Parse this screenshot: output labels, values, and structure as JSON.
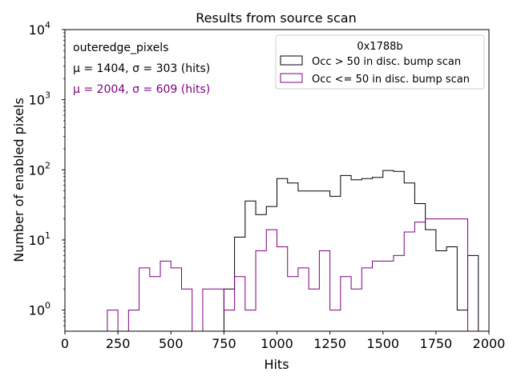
{
  "chart_data": {
    "type": "histogram",
    "title": "Results from source scan",
    "xlabel": "Hits",
    "ylabel": "Number of enabled pixels",
    "xlim": [
      0,
      2000
    ],
    "ylim": [
      0.5,
      10000
    ],
    "yscale": "log",
    "grid": false,
    "x_ticks": [
      "0",
      "250",
      "500",
      "750",
      "1000",
      "1250",
      "1500",
      "1750",
      "2000"
    ],
    "y_ticks": [
      {
        "base": "10",
        "exp": "0"
      },
      {
        "base": "10",
        "exp": "1"
      },
      {
        "base": "10",
        "exp": "2"
      },
      {
        "base": "10",
        "exp": "3"
      },
      {
        "base": "10",
        "exp": "4"
      }
    ],
    "annotations": [
      {
        "text": "outeredge_pixels",
        "color": "#000000"
      },
      {
        "text": "μ = 1404, σ = 303 (hits)",
        "color": "#000000"
      },
      {
        "text": "μ = 2004, σ = 609 (hits)",
        "color": "#800080"
      }
    ],
    "legend": {
      "title": "0x1788b",
      "placement": "top-right"
    },
    "bin_width": 50,
    "series": [
      {
        "name": "Occ > 50 in disc. bump scan",
        "color": "#000000",
        "bin_start": 750,
        "values": [
          2,
          11,
          36,
          23,
          30,
          75,
          65,
          50,
          50,
          50,
          42,
          83,
          72,
          75,
          78,
          98,
          95,
          65,
          33,
          14,
          7,
          8,
          1,
          6
        ]
      },
      {
        "name": "Occ <= 50 in disc. bump scan",
        "color": "#800080",
        "bin_start": 200,
        "values": [
          1,
          0,
          1,
          4,
          3,
          5,
          4,
          2,
          0,
          2,
          2,
          1,
          3,
          1,
          7,
          14,
          8,
          3,
          4,
          2,
          7,
          1,
          3,
          2,
          4,
          5,
          5,
          6,
          13,
          18,
          20,
          20,
          20,
          20
        ]
      }
    ]
  }
}
